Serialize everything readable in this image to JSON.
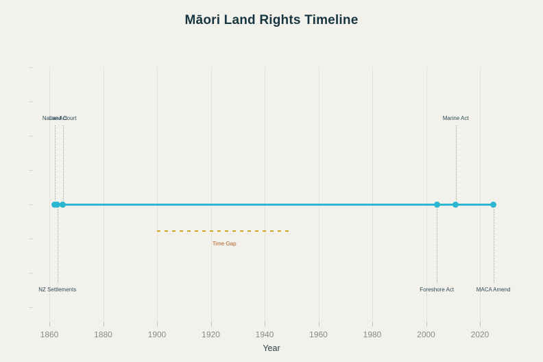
{
  "chart_data": {
    "type": "scatter",
    "title": "Māori Land Rights Timeline",
    "xlabel": "Year",
    "x_ticks": [
      1860,
      1880,
      1900,
      1920,
      1940,
      1960,
      1980,
      2000,
      2020
    ],
    "x_axis_range": [
      1860,
      2025
    ],
    "grid": "vertical-gridlines-on",
    "legend": "none",
    "events": [
      {
        "year": 1862,
        "label": "Native Act",
        "side": "above"
      },
      {
        "year": 1863,
        "label": "NZ Settlements",
        "side": "below"
      },
      {
        "year": 1865,
        "label": "Land Court",
        "side": "above"
      },
      {
        "year": 2004,
        "label": "Foreshore Act",
        "side": "below"
      },
      {
        "year": 2011,
        "label": "Marine Act",
        "side": "above"
      },
      {
        "year": 2025,
        "label": "MACA Amend",
        "side": "below"
      }
    ],
    "gap_annotation": {
      "label": "Time Gap",
      "from_year": 1900,
      "to_year": 1950
    }
  },
  "colors": {
    "background": "#f2f1ec",
    "title": "#173640",
    "timeline": "#2bb6d1",
    "event_dot": "#2bb6d1",
    "event_label": "#2d4b55",
    "leader_line": "#92a8a4",
    "gap_line": "#d2a41c",
    "gap_label": "#b4612e",
    "gridline": "#e3e2db",
    "x_tick_mark": "#c2c1bb",
    "y_tick_mark": "#d7d6d0",
    "tick_label": "#8b8a85",
    "axis_label": "#323f46"
  }
}
